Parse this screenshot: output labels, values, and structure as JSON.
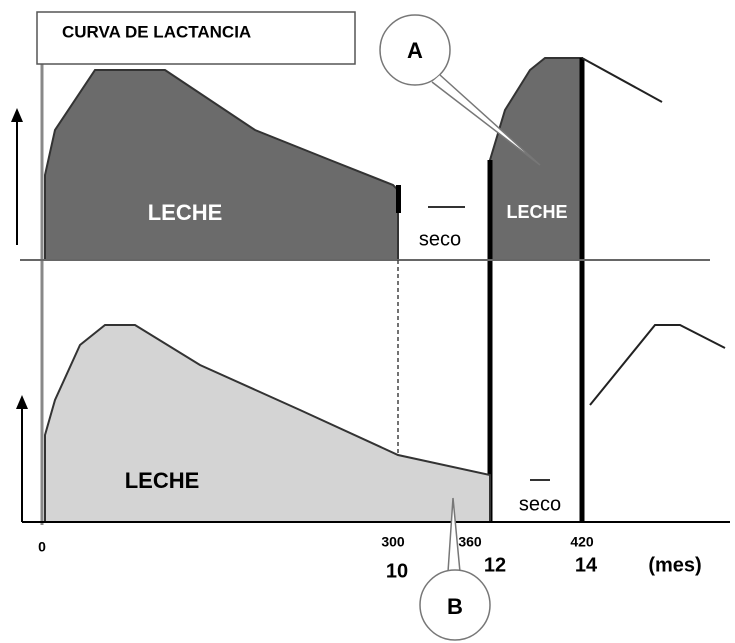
{
  "title": "CURVA DE LACTANCIA",
  "callouts": {
    "a": "A",
    "b": "B"
  },
  "top": {
    "milk1": "LECHE",
    "dry": "seco",
    "milk2": "LECHE"
  },
  "bottom": {
    "milk": "LECHE",
    "dry": "seco"
  },
  "axis": {
    "days": [
      "0",
      "300",
      "360",
      "420"
    ],
    "months": [
      "10",
      "12",
      "14"
    ],
    "unit": "(mes)"
  }
}
